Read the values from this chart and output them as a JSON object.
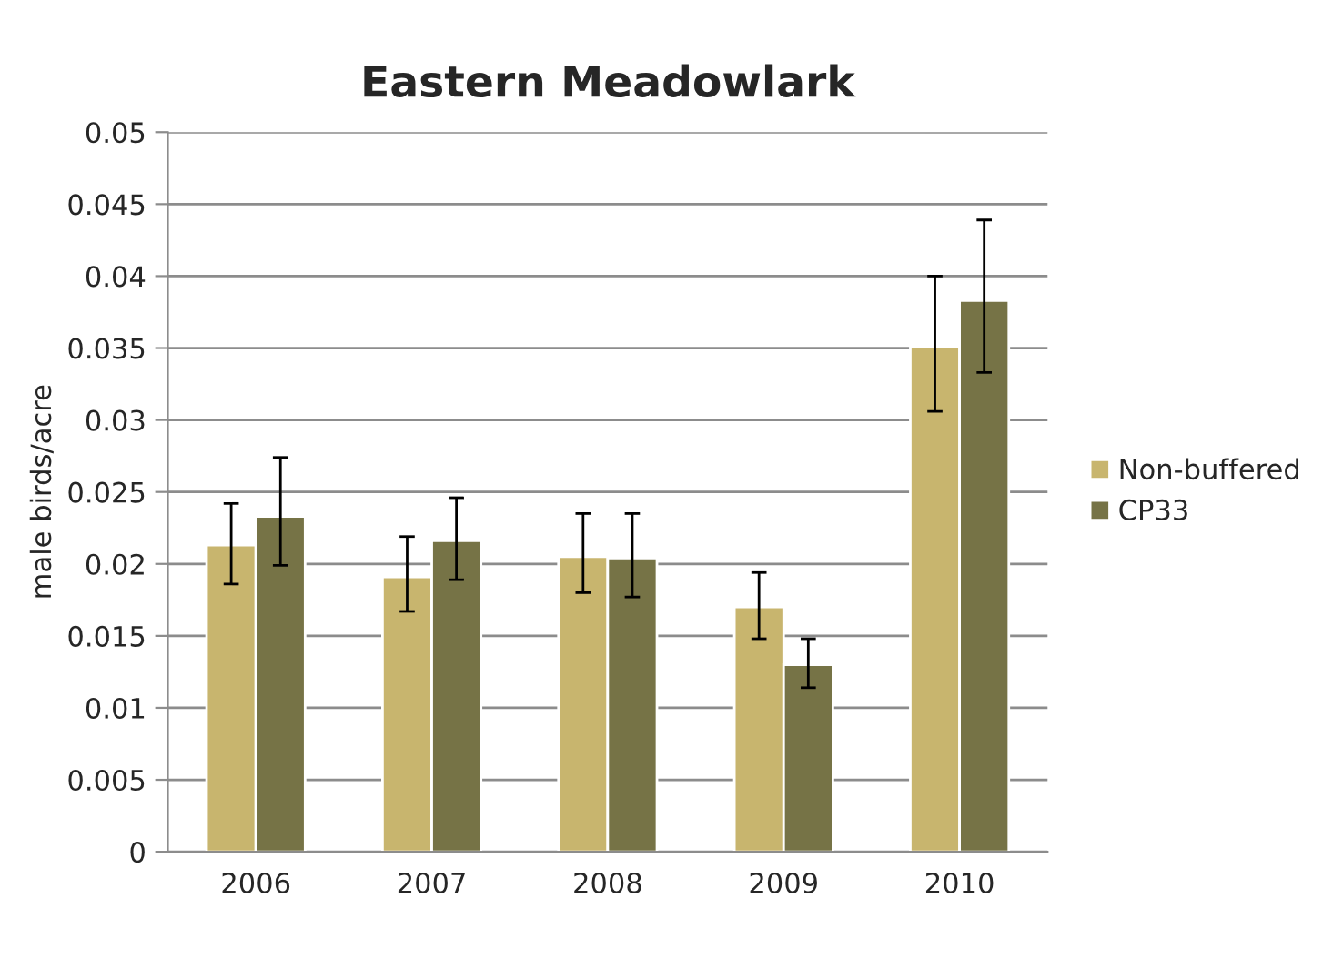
{
  "chart_data": {
    "type": "bar",
    "title": "Eastern Meadowlark",
    "ylabel": "male birds/acre",
    "categories": [
      "2006",
      "2007",
      "2008",
      "2009",
      "2010"
    ],
    "series": [
      {
        "name": "Non-buffered",
        "color": "#c8b56e",
        "values": [
          0.0213,
          0.0191,
          0.0205,
          0.017,
          0.0351
        ],
        "errors": [
          [
            0.0186,
            0.0242
          ],
          [
            0.0167,
            0.0219
          ],
          [
            0.018,
            0.0235
          ],
          [
            0.0148,
            0.0194
          ],
          [
            0.0306,
            0.04
          ]
        ]
      },
      {
        "name": "CP33",
        "color": "#767346",
        "values": [
          0.0233,
          0.0216,
          0.0204,
          0.013,
          0.0383
        ],
        "errors": [
          [
            0.0199,
            0.0274
          ],
          [
            0.0189,
            0.0246
          ],
          [
            0.0177,
            0.0235
          ],
          [
            0.0114,
            0.0148
          ],
          [
            0.0333,
            0.0439
          ]
        ]
      }
    ],
    "ylim": [
      0,
      0.05
    ],
    "yticks": [
      0,
      0.005,
      0.01,
      0.015,
      0.02,
      0.025,
      0.03,
      0.035,
      0.04,
      0.045,
      0.05
    ],
    "grid": "y",
    "legend": "right"
  }
}
